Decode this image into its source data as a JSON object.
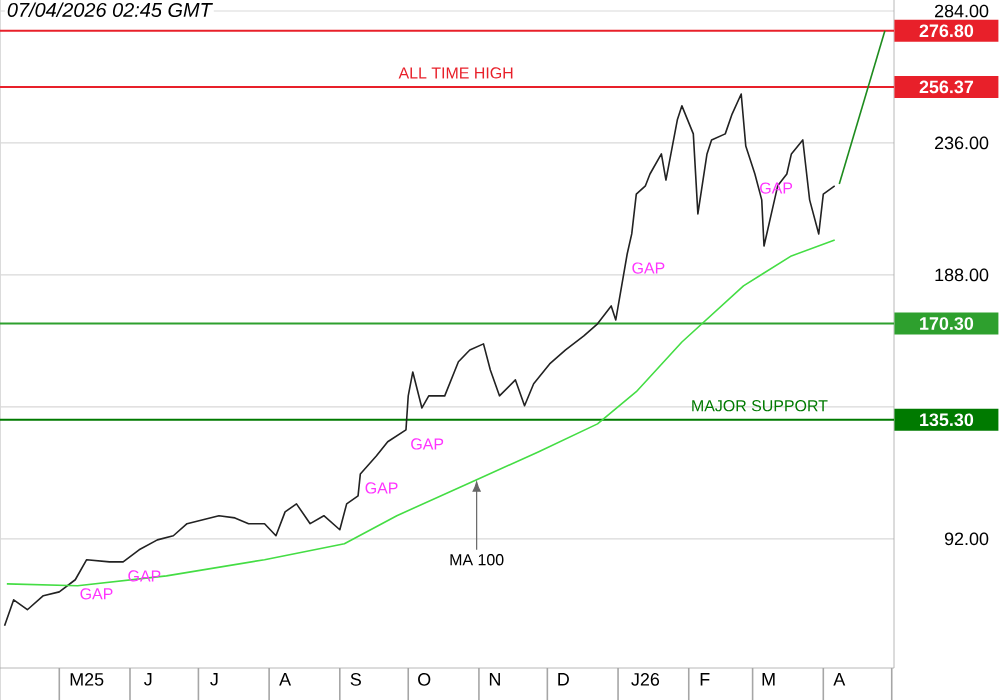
{
  "chart_data": {
    "type": "line",
    "xlim": [
      "2025-04-05",
      "2026-05-02"
    ],
    "ylim": [
      45,
      288
    ],
    "yticks": [
      {
        "value": 92,
        "label": "92.00"
      },
      {
        "value": 140,
        "label": null
      },
      {
        "value": 188,
        "label": "188.00"
      },
      {
        "value": 236,
        "label": "236.00"
      },
      {
        "value": 284,
        "label": "284.00"
      }
    ],
    "xticks": [
      {
        "value": "2025-05-13",
        "label": "M25"
      },
      {
        "value": "2025-06-09",
        "label": "J"
      },
      {
        "value": "2025-07-08",
        "label": "J"
      },
      {
        "value": "2025-08-08",
        "label": "A"
      },
      {
        "value": "2025-09-08",
        "label": "S"
      },
      {
        "value": "2025-10-08",
        "label": "O"
      },
      {
        "value": "2025-11-08",
        "label": "N"
      },
      {
        "value": "2025-12-08",
        "label": "D"
      },
      {
        "value": "2026-01-13",
        "label": "J26"
      },
      {
        "value": "2026-02-08",
        "label": "F"
      },
      {
        "value": "2026-03-08",
        "label": "M"
      },
      {
        "value": "2026-04-08",
        "label": "A"
      }
    ],
    "grid": "y",
    "marker": "none",
    "series": [
      {
        "color": "#222222",
        "x": [
          "2025-04-07",
          "2025-04-11",
          "2025-04-17",
          "2025-04-24",
          "2025-05-01",
          "2025-05-08",
          "2025-05-13",
          "2025-05-23",
          "2025-05-29",
          "2025-06-05",
          "2025-06-13",
          "2025-06-20",
          "2025-06-26",
          "2025-07-03",
          "2025-07-10",
          "2025-07-17",
          "2025-07-23",
          "2025-07-30",
          "2025-08-04",
          "2025-08-08",
          "2025-08-13",
          "2025-08-19",
          "2025-08-25",
          "2025-09-01",
          "2025-09-04",
          "2025-09-09",
          "2025-09-10",
          "2025-09-17",
          "2025-09-22",
          "2025-09-30",
          "2025-10-01",
          "2025-10-03",
          "2025-10-07",
          "2025-10-10",
          "2025-10-17",
          "2025-10-23",
          "2025-10-28",
          "2025-11-03",
          "2025-11-06",
          "2025-11-10",
          "2025-11-17",
          "2025-11-21",
          "2025-11-25",
          "2025-12-02",
          "2025-12-09",
          "2025-12-17",
          "2025-12-23",
          "2025-12-29",
          "2025-12-31",
          "2026-01-05",
          "2026-01-07",
          "2026-01-09",
          "2026-01-13",
          "2026-01-15",
          "2026-01-20",
          "2026-01-22",
          "2026-01-27",
          "2026-01-29",
          "2026-02-03",
          "2026-02-05",
          "2026-02-09",
          "2026-02-11",
          "2026-02-17",
          "2026-02-20",
          "2026-02-24",
          "2026-02-26",
          "2026-03-02",
          "2026-03-05",
          "2026-03-06",
          "2026-03-10",
          "2026-03-12",
          "2026-03-16",
          "2026-03-18",
          "2026-03-23",
          "2026-03-24",
          "2026-03-26",
          "2026-03-30",
          "2026-04-01",
          "2026-04-06"
        ],
        "values": [
          60.4,
          69.8,
          66.2,
          71.3,
          72.7,
          77.1,
          84.4,
          83.6,
          83.6,
          88.0,
          91.6,
          93.1,
          97.5,
          98.9,
          100.4,
          99.6,
          97.5,
          97.5,
          93.1,
          101.8,
          104.7,
          97.5,
          100.4,
          95.3,
          104.7,
          107.6,
          115.6,
          122.1,
          127.3,
          131.6,
          144.0,
          152.7,
          139.6,
          144.0,
          144.0,
          156.4,
          160.7,
          162.9,
          153.4,
          144.0,
          149.8,
          140.4,
          148.4,
          155.6,
          160.7,
          165.8,
          170.2,
          176.7,
          171.6,
          195.6,
          202.9,
          217.4,
          220.4,
          224.7,
          232.0,
          222.5,
          244.4,
          249.5,
          239.3,
          210.2,
          232.0,
          237.1,
          239.3,
          246.5,
          253.8,
          234.9,
          224.7,
          215.3,
          198.5,
          213.1,
          220.4,
          224.7,
          232.0,
          237.1,
          229.8,
          215.3,
          202.9,
          217.4,
          220.4
        ]
      },
      {
        "color": "#44dd44",
        "x": [
          "2025-04-08",
          "2025-05-09",
          "2025-06-17",
          "2025-07-30",
          "2025-09-03",
          "2025-09-26",
          "2025-10-31",
          "2025-11-27",
          "2025-12-23",
          "2026-01-09",
          "2026-01-29",
          "2026-02-25",
          "2026-03-18",
          "2026-04-06"
        ],
        "values": [
          75.6,
          74.9,
          78.5,
          84.4,
          90.2,
          100.4,
          113.5,
          123.6,
          133.8,
          145.5,
          163.6,
          184.0,
          194.9,
          200.7
        ]
      },
      {
        "color": "#1e8c1e",
        "x": [
          "2026-04-08",
          "2026-04-28"
        ],
        "values": [
          221.1,
          276.8
        ]
      }
    ],
    "ref_lines": [
      {
        "axis": "y",
        "value": 276.8,
        "label": "276.80",
        "color": "#e8202a"
      },
      {
        "axis": "y",
        "value": 256.37,
        "label": "256.37",
        "color": "#e8202a"
      },
      {
        "axis": "y",
        "value": 170.3,
        "label": "170.30",
        "color": "#2ea02e"
      },
      {
        "axis": "y",
        "value": 135.3,
        "label": "135.30",
        "color": "#007a00"
      }
    ],
    "annotations": [
      "07/04/2026 02:45 GMT",
      {
        "text": "ALL TIME HIGH",
        "x": "2025-10-22",
        "y": 256.37
      },
      {
        "text": "MAJOR SUPPORT",
        "x": "2026-03-04",
        "y": 135.3
      },
      {
        "text": "MA 100",
        "x": "2025-10-31",
        "y": 113.5
      },
      {
        "text": "GAP",
        "x": "2025-05-08",
        "y": 77.1
      },
      {
        "text": "GAP",
        "x": "2025-05-29",
        "y": 83.6
      },
      {
        "text": "GAP",
        "x": "2025-09-10",
        "y": 115.6
      },
      {
        "text": "GAP",
        "x": "2025-09-30",
        "y": 131.6
      },
      {
        "text": "GAP",
        "x": "2026-01-05",
        "y": 195.6
      },
      {
        "text": "GAP",
        "x": "2026-03-02",
        "y": 224.7
      }
    ]
  }
}
